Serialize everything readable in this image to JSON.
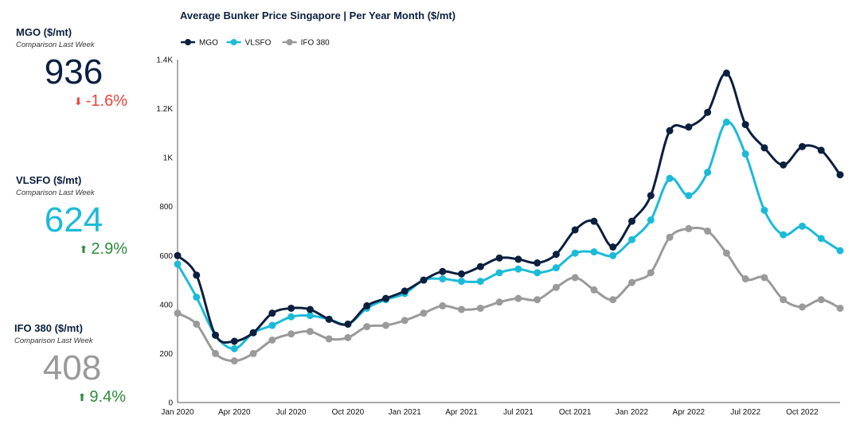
{
  "kpis": [
    {
      "title": "MGO ($/mt)",
      "subtitle": "Comparison Last Week",
      "value": "936",
      "change": "-1.6%",
      "direction": "down",
      "value_color": "#0b1f3f",
      "change_color": "#e8443a"
    },
    {
      "title": "VLSFO ($/mt)",
      "subtitle": "Comparison Last Week",
      "value": "624",
      "change": "2.9%",
      "direction": "up",
      "value_color": "#1bbbd8",
      "change_color": "#2e8b3a"
    },
    {
      "title": "IFO 380 ($/mt)",
      "subtitle": "Comparison Last Week",
      "value": "408",
      "change": "9.4%",
      "direction": "up",
      "value_color": "#9a9a9a",
      "change_color": "#2e8b3a"
    }
  ],
  "chart_data": {
    "type": "line",
    "title": "Average Bunker Price Singapore | Per Year Month ($/mt)",
    "x_tick_labels": [
      "Jan 2020",
      "Apr 2020",
      "Jul 2020",
      "Oct 2020",
      "Jan 2021",
      "Apr 2021",
      "Jul 2021",
      "Oct 2021",
      "Jan 2022",
      "Apr 2022",
      "Jul 2022",
      "Oct 2022"
    ],
    "y_ticks": [
      0,
      200,
      400,
      600,
      800,
      1000,
      1200,
      1400
    ],
    "y_tick_labels": [
      "0",
      "200",
      "400",
      "600",
      "800",
      "1K",
      "1.2K",
      "1.4K"
    ],
    "ylim": [
      0,
      1400
    ],
    "legend_position": "top-left",
    "grid": false,
    "x_start": "Jan 2020",
    "x_interval": "month",
    "series": [
      {
        "name": "MGO",
        "color": "#0b1f3f",
        "values": [
          600,
          520,
          275,
          250,
          285,
          365,
          385,
          380,
          340,
          320,
          395,
          425,
          455,
          500,
          535,
          525,
          555,
          590,
          585,
          570,
          605,
          705,
          740,
          635,
          740,
          845,
          1110,
          1125,
          1185,
          1345,
          1135,
          1040,
          970,
          1045,
          1030,
          930
        ]
      },
      {
        "name": "VLSFO",
        "color": "#1bbbd8",
        "values": [
          565,
          430,
          275,
          220,
          285,
          315,
          350,
          355,
          340,
          320,
          385,
          420,
          445,
          500,
          505,
          495,
          495,
          530,
          545,
          530,
          550,
          610,
          615,
          600,
          665,
          745,
          915,
          845,
          940,
          1145,
          1015,
          785,
          685,
          720,
          670,
          620
        ]
      },
      {
        "name": "IFO 380",
        "color": "#9a9a9a",
        "values": [
          365,
          320,
          200,
          170,
          200,
          255,
          280,
          290,
          260,
          265,
          310,
          315,
          335,
          365,
          395,
          380,
          385,
          410,
          425,
          420,
          470,
          510,
          460,
          420,
          490,
          530,
          675,
          710,
          700,
          610,
          505,
          510,
          420,
          390,
          420,
          385
        ]
      }
    ]
  }
}
